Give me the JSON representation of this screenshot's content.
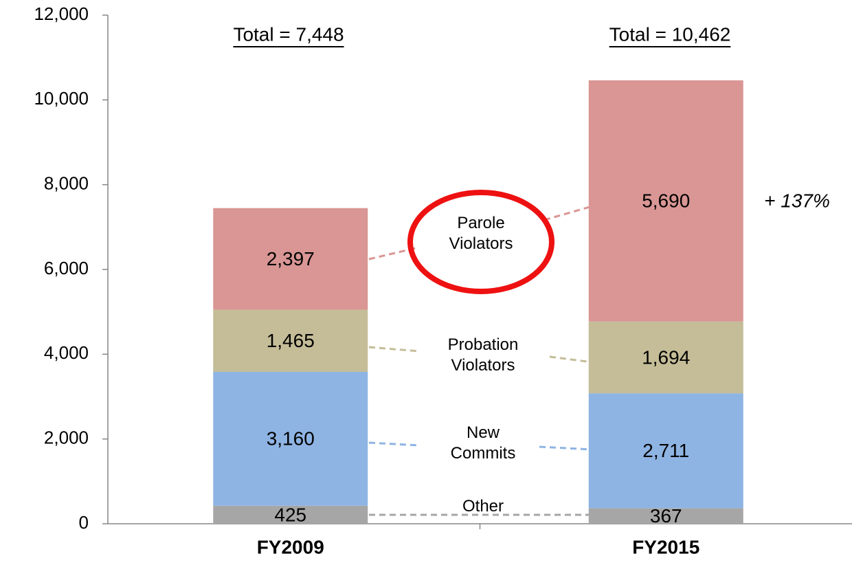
{
  "chart_data": {
    "type": "stacked_bar",
    "categories": [
      "FY2009",
      "FY2015"
    ],
    "series": [
      {
        "name": "Other",
        "color": "#a6a6a6",
        "values": [
          425,
          367
        ],
        "value_labels": [
          "425",
          "367"
        ]
      },
      {
        "name": "New Commits",
        "color": "#8eb4e3",
        "values": [
          3160,
          2711
        ],
        "value_labels": [
          "3,160",
          "2,711"
        ]
      },
      {
        "name": "Probation Violators",
        "color": "#c4bd97",
        "values": [
          1465,
          1694
        ],
        "value_labels": [
          "1,465",
          "1,694"
        ]
      },
      {
        "name": "Parole Violators",
        "color": "#d99694",
        "values": [
          2397,
          5690
        ],
        "value_labels": [
          "2,397",
          "5,690"
        ]
      }
    ],
    "annotations": [
      "Total = 7,448",
      "Total = 10,462",
      "+ 137%"
    ],
    "ylim": [
      0,
      12000
    ],
    "yticks": [
      0,
      {
        "value": 2000,
        "label": "2,000"
      },
      {
        "value": 4000,
        "label": "4,000"
      },
      {
        "value": 6000,
        "label": "6,000"
      },
      {
        "value": 8000,
        "label": "8,000"
      },
      {
        "value": 10000,
        "label": "10,000"
      },
      {
        "value": 12000,
        "label": "12,000"
      }
    ]
  }
}
